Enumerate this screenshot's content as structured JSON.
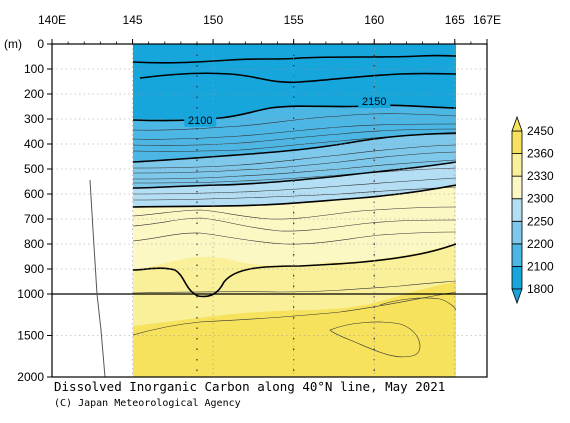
{
  "chart_data": {
    "type": "heatmap",
    "title": "Dissolved Inorganic Carbon along 40°N line, May 2021",
    "credit": "(C) Japan Meteorological Agency",
    "xlabel": "",
    "ylabel": "(m)",
    "x_range": [
      140,
      167
    ],
    "x_ticks": [
      {
        "value": 140,
        "label": "140E"
      },
      {
        "value": 145,
        "label": "145"
      },
      {
        "value": 150,
        "label": "150"
      },
      {
        "value": 155,
        "label": "155"
      },
      {
        "value": 160,
        "label": "160"
      },
      {
        "value": 165,
        "label": "165"
      },
      {
        "value": 167,
        "label": "167E"
      }
    ],
    "y_ticks": [
      {
        "value": 0,
        "label": "0"
      },
      {
        "value": 100,
        "label": "100"
      },
      {
        "value": 200,
        "label": "200"
      },
      {
        "value": 300,
        "label": "300"
      },
      {
        "value": 400,
        "label": "400"
      },
      {
        "value": 500,
        "label": "500"
      },
      {
        "value": 600,
        "label": "600"
      },
      {
        "value": 700,
        "label": "700"
      },
      {
        "value": 800,
        "label": "800"
      },
      {
        "value": 900,
        "label": "900"
      },
      {
        "value": 1000,
        "label": "1000"
      },
      {
        "value": 1500,
        "label": "1500"
      },
      {
        "value": 2000,
        "label": "2000"
      }
    ],
    "y_scale": "piecewise linear: 0-1000 m upper panel, 1000-2000 m compressed lower panel",
    "section_lon_range": [
      145,
      165
    ],
    "station_longitudes": [
      149,
      155,
      160
    ],
    "colorbar": {
      "levels": [
        1800,
        2100,
        2200,
        2250,
        2300,
        2330,
        2360,
        2450
      ],
      "colors": [
        "#16a6dc",
        "#4cb6e4",
        "#7ec8ec",
        "#b4def4",
        "#fcf8c4",
        "#faf09a",
        "#f6e25c"
      ]
    },
    "contour_labels": [
      {
        "value": 2100,
        "text": "2100",
        "lon": 149.2,
        "depth": 315
      },
      {
        "value": 2150,
        "text": "2150",
        "lon": 160.0,
        "depth": 240
      }
    ],
    "layers": [
      {
        "range": "1800-2100",
        "depth_at_145": 310,
        "depth_at_150": 300,
        "depth_at_155": 250,
        "depth_at_160": 240,
        "depth_at_165": 230
      },
      {
        "range": "2100-2200",
        "depth_at_145": 440,
        "depth_at_150": 430,
        "depth_at_155": 400,
        "depth_at_160": 360,
        "depth_at_165": 350
      },
      {
        "range": "2200-2250",
        "depth_at_145": 520,
        "depth_at_150": 500,
        "depth_at_155": 480,
        "depth_at_160": 450,
        "depth_at_165": 440
      },
      {
        "range": "2250-2300",
        "depth_at_145": 630,
        "depth_at_150": 610,
        "depth_at_155": 600,
        "depth_at_160": 560,
        "depth_at_165": 550
      },
      {
        "range": "2300-2330",
        "depth_at_145": 840,
        "depth_at_150": 800,
        "depth_at_155": 860,
        "depth_at_160": 820,
        "depth_at_165": 800
      },
      {
        "range": "2330-2360",
        "depth_at_145": 1500,
        "depth_at_150": 1450,
        "depth_at_155": 1400,
        "depth_at_160": 1350,
        "depth_at_165": 1300
      },
      {
        "range": "2360-2450",
        "depth_at_145": 2000,
        "depth_at_150": 2000,
        "depth_at_155": 2000,
        "depth_at_160": 2000,
        "depth_at_165": 2000
      }
    ]
  }
}
